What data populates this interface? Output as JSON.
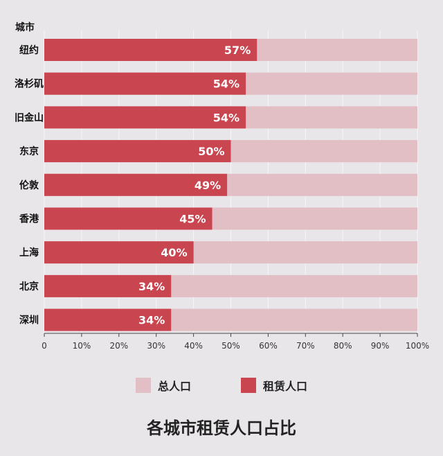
{
  "chart_data": {
    "type": "bar",
    "orientation": "horizontal",
    "stacked_to_100": true,
    "title": "各城市租赁人口占比",
    "ylabel": "城市",
    "categories": [
      "纽约",
      "洛杉矶",
      "旧金山",
      "东京",
      "伦敦",
      "香港",
      "上海",
      "北京",
      "深圳"
    ],
    "series": [
      {
        "name": "租赁人口",
        "values": [
          57,
          54,
          54,
          50,
          49,
          45,
          40,
          34,
          34
        ],
        "color": "#c9454f"
      },
      {
        "name": "总人口",
        "values": [
          100,
          100,
          100,
          100,
          100,
          100,
          100,
          100,
          100
        ],
        "color": "#e2bfc4"
      }
    ],
    "xlim": [
      0,
      100
    ],
    "xticks": [
      "0",
      "10%",
      "20%",
      "30%",
      "40%",
      "50%",
      "60%",
      "70%",
      "80%",
      "90%",
      "100%"
    ],
    "data_labels": [
      "57%",
      "54%",
      "54%",
      "50%",
      "49%",
      "45%",
      "40%",
      "34%",
      "34%"
    ],
    "grid": true,
    "legend_position": "bottom"
  },
  "legend": [
    {
      "label": "总人口",
      "color": "#e2bfc4"
    },
    {
      "label": "租赁人口",
      "color": "#c9454f"
    }
  ]
}
